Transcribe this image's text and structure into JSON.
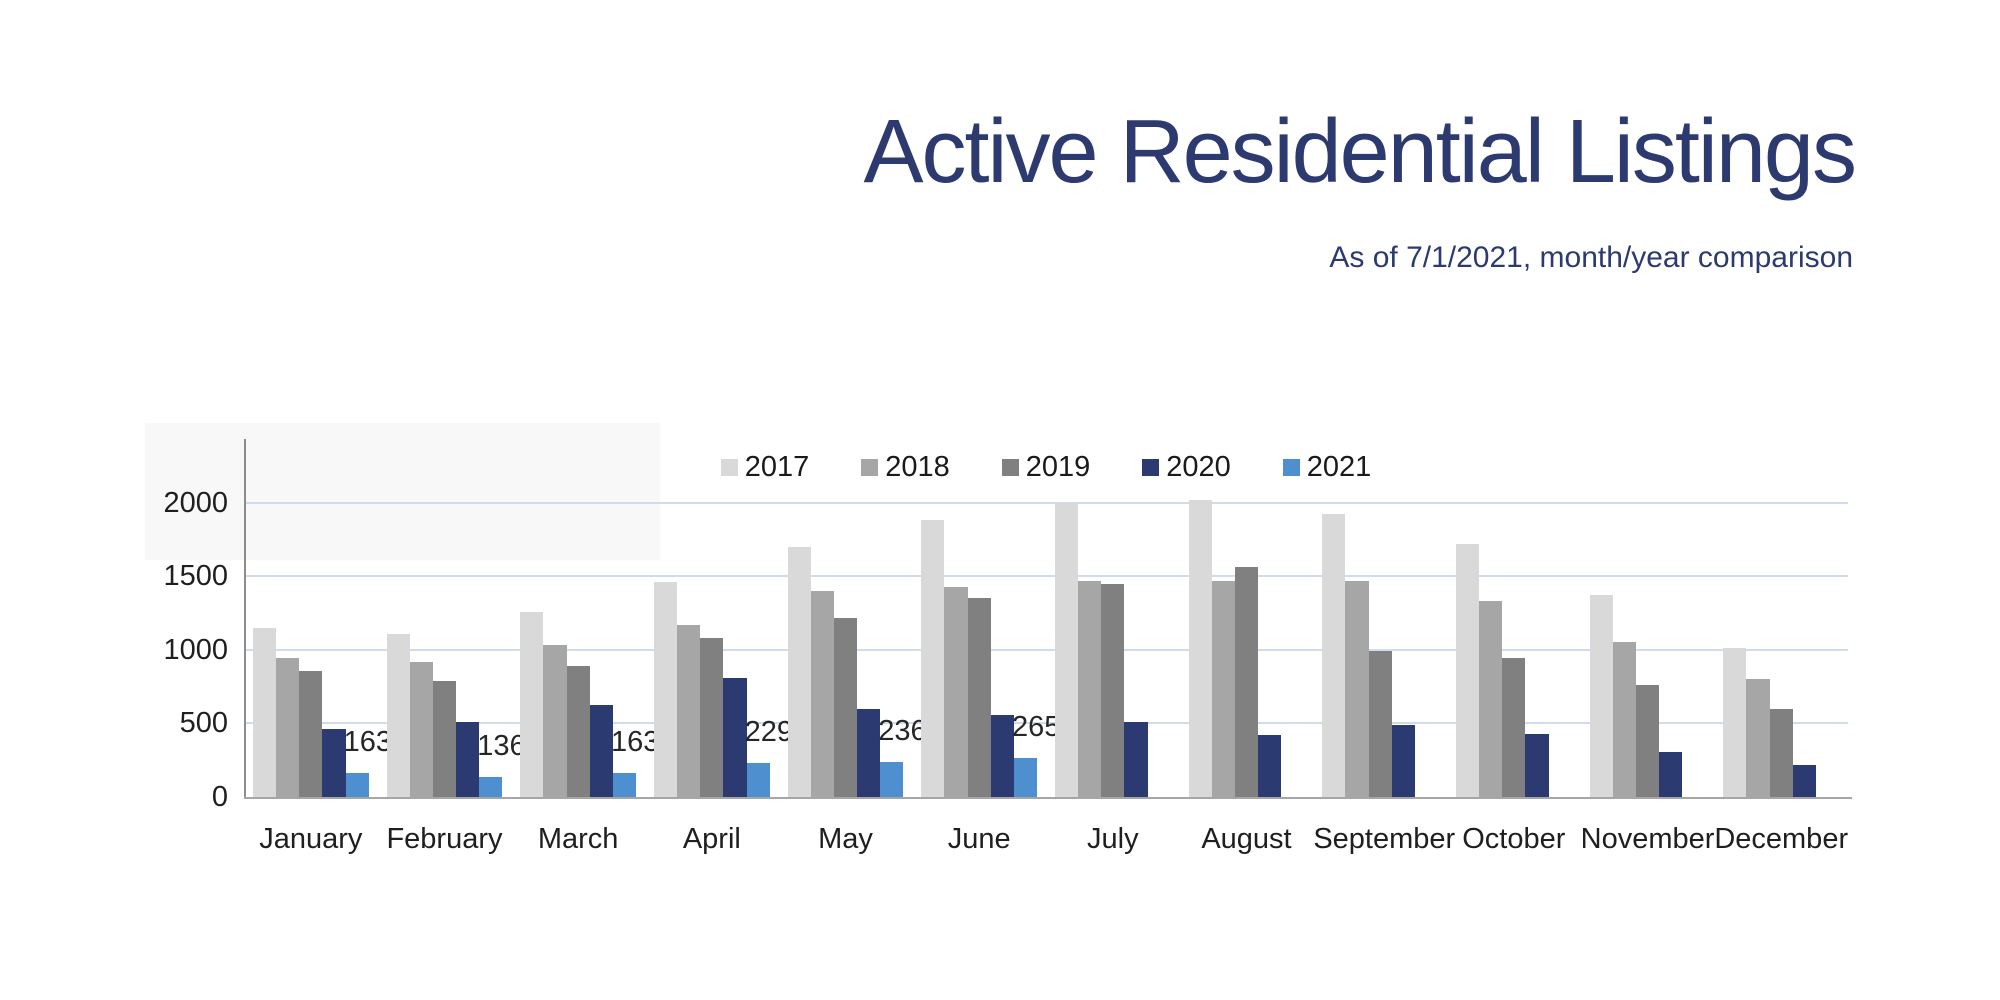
{
  "title": "Active Residential Listings",
  "subtitle": "As of 7/1/2021, month/year comparison",
  "colors": {
    "title_text": "#2d3a70",
    "axis_text": "#1f1f1f",
    "gridline": "#cfdcec",
    "y_axis_line": "#8c8c8c",
    "x_axis_line": "#a6a6a6",
    "series_2017": "#d9d9d9",
    "series_2018": "#a6a6a6",
    "series_2019": "#808080",
    "series_2020": "#2b3b72",
    "series_2021": "#4e90cf"
  },
  "chart_data": {
    "type": "bar",
    "title": "Active Residential Listings",
    "subtitle": "As of 7/1/2021, month/year comparison",
    "categories": [
      "January",
      "February",
      "March",
      "April",
      "May",
      "June",
      "July",
      "August",
      "September",
      "October",
      "November",
      "December"
    ],
    "series": [
      {
        "name": "2017",
        "color": "#d9d9d9",
        "values": [
          1150,
          1105,
          1260,
          1460,
          1700,
          1880,
          1995,
          2015,
          1920,
          1720,
          1375,
          1010
        ]
      },
      {
        "name": "2018",
        "color": "#a6a6a6",
        "values": [
          945,
          920,
          1030,
          1170,
          1400,
          1425,
          1465,
          1465,
          1465,
          1330,
          1055,
          800
        ]
      },
      {
        "name": "2019",
        "color": "#808080",
        "values": [
          855,
          785,
          890,
          1080,
          1215,
          1355,
          1445,
          1560,
          990,
          945,
          760,
          600
        ]
      },
      {
        "name": "2020",
        "color": "#2b3b72",
        "values": [
          465,
          510,
          625,
          810,
          600,
          555,
          510,
          420,
          490,
          425,
          305,
          215
        ]
      },
      {
        "name": "2021",
        "color": "#4e90cf",
        "values": [
          163,
          136,
          163,
          229,
          236,
          265,
          null,
          null,
          null,
          null,
          null,
          null
        ],
        "data_labels": true
      }
    ],
    "data_label_values": [
      "163",
      "136",
      "163",
      "229",
      "236",
      "265"
    ],
    "xlabel": "",
    "ylabel": "",
    "yticks": [
      0,
      500,
      1000,
      1500,
      2000
    ],
    "ylim": [
      0,
      2430
    ],
    "grid": true,
    "legend_position": "top-center",
    "legend_entries": [
      "2017",
      "2018",
      "2019",
      "2020",
      "2021"
    ]
  }
}
